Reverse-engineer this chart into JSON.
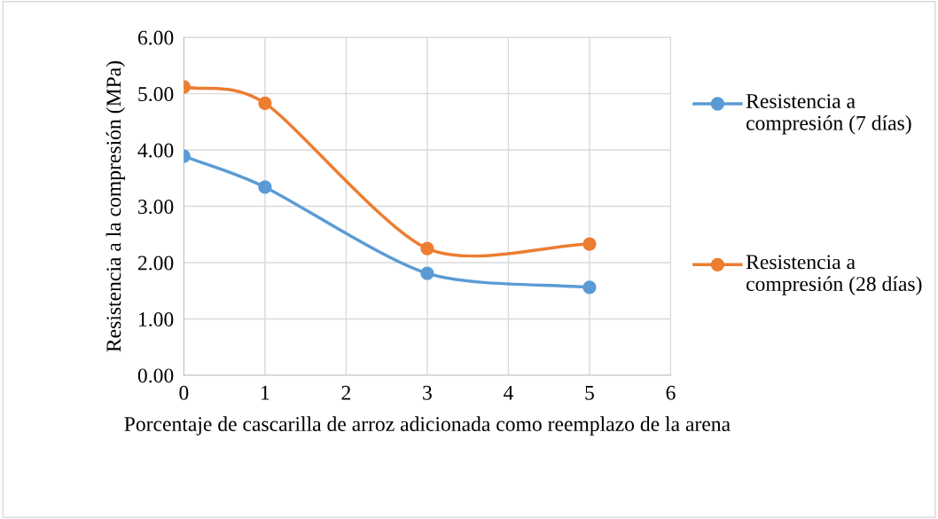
{
  "chart_data": {
    "type": "line",
    "xlabel": "Porcentaje de cascarilla de arroz adicionada como reemplazo de la arena",
    "ylabel": "Resistencia a la compresión (MPa)",
    "x": [
      0,
      1,
      3,
      5
    ],
    "series": [
      {
        "name": "Resistencia a compresión (7 días)",
        "color": "#5b9bd5",
        "values": [
          3.89,
          3.34,
          1.81,
          1.56
        ]
      },
      {
        "name": "Resistencia a compresión (28 días)",
        "color": "#ed7d31",
        "values": [
          5.12,
          4.83,
          2.25,
          2.33
        ]
      }
    ],
    "xlim": [
      0,
      6
    ],
    "xticks": [
      0,
      1,
      2,
      3,
      4,
      5,
      6
    ],
    "ylim": [
      0,
      6
    ],
    "yticks": [
      {
        "value": 0,
        "label": "0.00"
      },
      {
        "value": 1,
        "label": "1.00"
      },
      {
        "value": 2,
        "label": "2.00"
      },
      {
        "value": 3,
        "label": "3.00"
      },
      {
        "value": 4,
        "label": "4.00"
      },
      {
        "value": 5,
        "label": "5.00"
      },
      {
        "value": 6,
        "label": "6.00"
      }
    ],
    "grid": true,
    "legend": "right",
    "marker": "circle",
    "line_style": "solid"
  }
}
